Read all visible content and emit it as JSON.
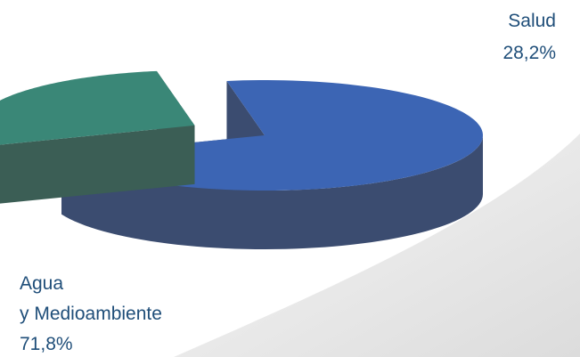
{
  "chart_data": {
    "type": "pie",
    "title": "",
    "categories": [
      "Agua y Medioambiente",
      "Salud"
    ],
    "values": [
      71.8,
      28.2
    ],
    "series": [
      {
        "values": [
          71.8,
          28.2
        ]
      }
    ],
    "slices": [
      {
        "label_lines": [
          "Agua",
          "y Medioambiente"
        ],
        "value_text": "71,8%",
        "value": 71.8,
        "color": "#3c65b4",
        "side_color": "#3b4c70",
        "exploded": false
      },
      {
        "label_lines": [
          "Salud"
        ],
        "value_text": "28,2%",
        "value": 28.2,
        "color": "#3a8777",
        "side_color": "#3b5e55",
        "exploded": true
      }
    ],
    "legend": "none",
    "style": "3d-exploded"
  },
  "colors": {
    "label_text": "#1f4e79",
    "shadow": "#e6e6e6"
  }
}
